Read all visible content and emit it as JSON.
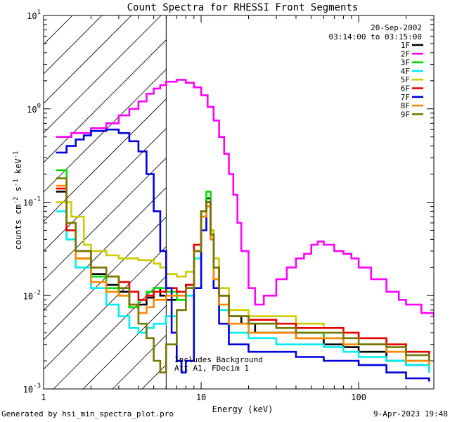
{
  "chart_data": {
    "type": "line",
    "title": "Count Spectra for RHESSI Front Segments",
    "xlabel": "Energy (keV)",
    "ylabel": "counts cm-2 s-1 keV-1",
    "xscale": "log",
    "yscale": "log",
    "xlim": [
      1,
      300
    ],
    "ylim": [
      0.001,
      10
    ],
    "x_ticks": [
      {
        "value": 1,
        "label": "1"
      },
      {
        "value": 10,
        "label": "10"
      },
      {
        "value": 100,
        "label": "100"
      }
    ],
    "y_ticks": [
      {
        "value": 10,
        "base": "10",
        "exp": "1"
      },
      {
        "value": 1,
        "base": "10",
        "exp": "0"
      },
      {
        "value": 0.1,
        "base": "10",
        "exp": "-1"
      },
      {
        "value": 0.01,
        "base": "10",
        "exp": "-2"
      },
      {
        "value": 0.001,
        "base": "10",
        "exp": "-3"
      }
    ],
    "shaded_region_xmax": 6,
    "info_lines": [
      "20-Sep-2002",
      "03:14:00 to 03:15:00"
    ],
    "annotations": [
      "Includes Background",
      "Att A1, FDecim 1"
    ],
    "series": [
      {
        "name": "1F",
        "color": "#000000",
        "points": [
          [
            1.2,
            0.13
          ],
          [
            1.4,
            0.04
          ],
          [
            1.6,
            0.025
          ],
          [
            2,
            0.017
          ],
          [
            2.5,
            0.013
          ],
          [
            3,
            0.011
          ],
          [
            3.5,
            0.0075
          ],
          [
            4,
            0.008
          ],
          [
            4.5,
            0.0095
          ],
          [
            5,
            0.012
          ],
          [
            5.5,
            0.01
          ],
          [
            6,
            0.009
          ],
          [
            7,
            0.011
          ],
          [
            8,
            0.013
          ],
          [
            9,
            0.03
          ],
          [
            10,
            0.08
          ],
          [
            10.8,
            0.11
          ],
          [
            11.5,
            0.05
          ],
          [
            12,
            0.02
          ],
          [
            13,
            0.01
          ],
          [
            15,
            0.006
          ],
          [
            18,
            0.005
          ],
          [
            22,
            0.004
          ],
          [
            30,
            0.004
          ],
          [
            40,
            0.0035
          ],
          [
            60,
            0.003
          ],
          [
            80,
            0.0028
          ],
          [
            100,
            0.0025
          ],
          [
            150,
            0.002
          ],
          [
            200,
            0.0018
          ],
          [
            280,
            0.0015
          ]
        ]
      },
      {
        "name": "2F",
        "color": "#ff00ff",
        "points": [
          [
            1.2,
            0.5
          ],
          [
            1.5,
            0.55
          ],
          [
            2,
            0.62
          ],
          [
            2.5,
            0.7
          ],
          [
            3,
            0.85
          ],
          [
            3.5,
            1.0
          ],
          [
            4,
            1.2
          ],
          [
            4.5,
            1.45
          ],
          [
            5,
            1.65
          ],
          [
            5.5,
            1.8
          ],
          [
            6,
            1.95
          ],
          [
            7,
            2.05
          ],
          [
            8,
            1.9
          ],
          [
            9,
            1.7
          ],
          [
            10,
            1.4
          ],
          [
            11,
            1.05
          ],
          [
            12,
            0.75
          ],
          [
            13,
            0.5
          ],
          [
            14,
            0.33
          ],
          [
            15,
            0.2
          ],
          [
            16,
            0.12
          ],
          [
            17,
            0.06
          ],
          [
            18,
            0.03
          ],
          [
            20,
            0.012
          ],
          [
            22,
            0.008
          ],
          [
            25,
            0.01
          ],
          [
            30,
            0.015
          ],
          [
            35,
            0.02
          ],
          [
            40,
            0.025
          ],
          [
            45,
            0.028
          ],
          [
            50,
            0.035
          ],
          [
            55,
            0.038
          ],
          [
            60,
            0.035
          ],
          [
            70,
            0.03
          ],
          [
            80,
            0.028
          ],
          [
            90,
            0.025
          ],
          [
            100,
            0.02
          ],
          [
            120,
            0.015
          ],
          [
            150,
            0.011
          ],
          [
            180,
            0.009
          ],
          [
            200,
            0.008
          ],
          [
            250,
            0.0065
          ],
          [
            300,
            0.006
          ]
        ]
      },
      {
        "name": "3F",
        "color": "#00dd00",
        "points": [
          [
            1.2,
            0.22
          ],
          [
            1.4,
            0.05
          ],
          [
            1.6,
            0.025
          ],
          [
            2,
            0.016
          ],
          [
            2.5,
            0.012
          ],
          [
            3,
            0.01
          ],
          [
            3.5,
            0.0075
          ],
          [
            4,
            0.009
          ],
          [
            4.5,
            0.011
          ],
          [
            5,
            0.012
          ],
          [
            6,
            0.011
          ],
          [
            7,
            0.009
          ],
          [
            8,
            0.012
          ],
          [
            9,
            0.03
          ],
          [
            10,
            0.08
          ],
          [
            10.8,
            0.13
          ],
          [
            11.5,
            0.05
          ],
          [
            12,
            0.02
          ],
          [
            13,
            0.01
          ],
          [
            15,
            0.006
          ],
          [
            20,
            0.005
          ],
          [
            30,
            0.0045
          ],
          [
            40,
            0.004
          ],
          [
            60,
            0.0035
          ],
          [
            80,
            0.003
          ],
          [
            100,
            0.003
          ],
          [
            150,
            0.0025
          ],
          [
            200,
            0.002
          ],
          [
            280,
            0.0018
          ]
        ]
      },
      {
        "name": "4F",
        "color": "#00eeee",
        "points": [
          [
            1.2,
            0.08
          ],
          [
            1.4,
            0.04
          ],
          [
            1.6,
            0.02
          ],
          [
            2,
            0.012
          ],
          [
            2.5,
            0.008
          ],
          [
            3,
            0.006
          ],
          [
            3.5,
            0.0045
          ],
          [
            4,
            0.004
          ],
          [
            4.5,
            0.0045
          ],
          [
            5,
            0.005
          ],
          [
            6,
            0.006
          ],
          [
            7,
            0.007
          ],
          [
            8,
            0.01
          ],
          [
            9,
            0.025
          ],
          [
            10,
            0.07
          ],
          [
            10.8,
            0.09
          ],
          [
            11.5,
            0.04
          ],
          [
            12,
            0.015
          ],
          [
            13,
            0.007
          ],
          [
            15,
            0.004
          ],
          [
            20,
            0.0035
          ],
          [
            30,
            0.003
          ],
          [
            40,
            0.003
          ],
          [
            60,
            0.0028
          ],
          [
            80,
            0.0025
          ],
          [
            100,
            0.0022
          ],
          [
            150,
            0.002
          ],
          [
            200,
            0.0018
          ],
          [
            280,
            0.0015
          ]
        ]
      },
      {
        "name": "5F",
        "color": "#cccc00",
        "points": [
          [
            1.2,
            0.1
          ],
          [
            1.5,
            0.07
          ],
          [
            1.8,
            0.035
          ],
          [
            2,
            0.03
          ],
          [
            2.5,
            0.027
          ],
          [
            3,
            0.025
          ],
          [
            3.5,
            0.025
          ],
          [
            4,
            0.024
          ],
          [
            4.5,
            0.024
          ],
          [
            5,
            0.022
          ],
          [
            5.5,
            0.02
          ],
          [
            6,
            0.017
          ],
          [
            7,
            0.016
          ],
          [
            8,
            0.018
          ],
          [
            9,
            0.035
          ],
          [
            10,
            0.08
          ],
          [
            10.8,
            0.1
          ],
          [
            11.5,
            0.05
          ],
          [
            12,
            0.025
          ],
          [
            13,
            0.012
          ],
          [
            15,
            0.007
          ],
          [
            20,
            0.006
          ],
          [
            30,
            0.006
          ],
          [
            40,
            0.005
          ],
          [
            60,
            0.0045
          ],
          [
            80,
            0.004
          ],
          [
            100,
            0.0035
          ],
          [
            150,
            0.003
          ],
          [
            200,
            0.0025
          ],
          [
            280,
            0.002
          ]
        ]
      },
      {
        "name": "6F",
        "color": "#ee0000",
        "points": [
          [
            1.2,
            0.14
          ],
          [
            1.4,
            0.05
          ],
          [
            1.6,
            0.03
          ],
          [
            2,
            0.02
          ],
          [
            2.5,
            0.016
          ],
          [
            3,
            0.014
          ],
          [
            3.5,
            0.011
          ],
          [
            4,
            0.009
          ],
          [
            4.5,
            0.01
          ],
          [
            5,
            0.011
          ],
          [
            6,
            0.012
          ],
          [
            7,
            0.011
          ],
          [
            8,
            0.013
          ],
          [
            9,
            0.035
          ],
          [
            10,
            0.08
          ],
          [
            10.8,
            0.1
          ],
          [
            11.5,
            0.045
          ],
          [
            12,
            0.02
          ],
          [
            13,
            0.01
          ],
          [
            15,
            0.006
          ],
          [
            20,
            0.0055
          ],
          [
            30,
            0.005
          ],
          [
            40,
            0.0045
          ],
          [
            60,
            0.0045
          ],
          [
            80,
            0.004
          ],
          [
            100,
            0.0035
          ],
          [
            150,
            0.003
          ],
          [
            200,
            0.0025
          ],
          [
            280,
            0.002
          ]
        ]
      },
      {
        "name": "7F",
        "color": "#0000dd",
        "points": [
          [
            1.2,
            0.34
          ],
          [
            1.4,
            0.4
          ],
          [
            1.6,
            0.47
          ],
          [
            1.8,
            0.52
          ],
          [
            2,
            0.58
          ],
          [
            2.5,
            0.6
          ],
          [
            3,
            0.55
          ],
          [
            3.5,
            0.45
          ],
          [
            4,
            0.35
          ],
          [
            4.5,
            0.2
          ],
          [
            5,
            0.08
          ],
          [
            5.5,
            0.03
          ],
          [
            6,
            0.012
          ],
          [
            6.5,
            0.004
          ],
          [
            7,
            0.002
          ],
          [
            7.5,
            0.0015
          ],
          [
            8,
            0.002
          ],
          [
            9,
            0.012
          ],
          [
            10,
            0.05
          ],
          [
            10.8,
            0.1
          ],
          [
            11.5,
            0.04
          ],
          [
            12,
            0.012
          ],
          [
            13,
            0.005
          ],
          [
            15,
            0.003
          ],
          [
            20,
            0.0025
          ],
          [
            30,
            0.0025
          ],
          [
            40,
            0.0022
          ],
          [
            60,
            0.002
          ],
          [
            80,
            0.002
          ],
          [
            100,
            0.0018
          ],
          [
            150,
            0.0015
          ],
          [
            200,
            0.0013
          ],
          [
            280,
            0.0012
          ]
        ]
      },
      {
        "name": "8F",
        "color": "#ff8800",
        "points": [
          [
            1.2,
            0.15
          ],
          [
            1.4,
            0.06
          ],
          [
            1.6,
            0.025
          ],
          [
            2,
            0.014
          ],
          [
            2.5,
            0.011
          ],
          [
            3,
            0.01
          ],
          [
            3.5,
            0.008
          ],
          [
            4,
            0.0065
          ],
          [
            4.5,
            0.0075
          ],
          [
            5,
            0.009
          ],
          [
            6,
            0.01
          ],
          [
            7,
            0.01
          ],
          [
            8,
            0.012
          ],
          [
            9,
            0.03
          ],
          [
            10,
            0.07
          ],
          [
            10.8,
            0.09
          ],
          [
            11.5,
            0.04
          ],
          [
            12,
            0.015
          ],
          [
            13,
            0.008
          ],
          [
            15,
            0.005
          ],
          [
            20,
            0.004
          ],
          [
            30,
            0.004
          ],
          [
            40,
            0.0035
          ],
          [
            60,
            0.0035
          ],
          [
            80,
            0.003
          ],
          [
            100,
            0.003
          ],
          [
            150,
            0.0025
          ],
          [
            200,
            0.002
          ],
          [
            280,
            0.0018
          ]
        ]
      },
      {
        "name": "9F",
        "color": "#777700",
        "points": [
          [
            1.2,
            0.18
          ],
          [
            1.4,
            0.06
          ],
          [
            1.6,
            0.03
          ],
          [
            2,
            0.02
          ],
          [
            2.5,
            0.016
          ],
          [
            3,
            0.012
          ],
          [
            3.5,
            0.008
          ],
          [
            4,
            0.005
          ],
          [
            4.5,
            0.0035
          ],
          [
            5,
            0.002
          ],
          [
            5.5,
            0.0015
          ],
          [
            6,
            0.003
          ],
          [
            7,
            0.007
          ],
          [
            8,
            0.012
          ],
          [
            9,
            0.03
          ],
          [
            10,
            0.08
          ],
          [
            10.8,
            0.1
          ],
          [
            11.5,
            0.045
          ],
          [
            12,
            0.02
          ],
          [
            13,
            0.01
          ],
          [
            15,
            0.006
          ],
          [
            20,
            0.005
          ],
          [
            30,
            0.0045
          ],
          [
            40,
            0.004
          ],
          [
            60,
            0.004
          ],
          [
            80,
            0.0035
          ],
          [
            100,
            0.003
          ],
          [
            150,
            0.0028
          ],
          [
            200,
            0.0023
          ],
          [
            280,
            0.002
          ]
        ]
      }
    ]
  },
  "footer": {
    "left": "Generated by hsi_min_spectra_plot.pro",
    "right": "9-Apr-2023 19:48"
  }
}
